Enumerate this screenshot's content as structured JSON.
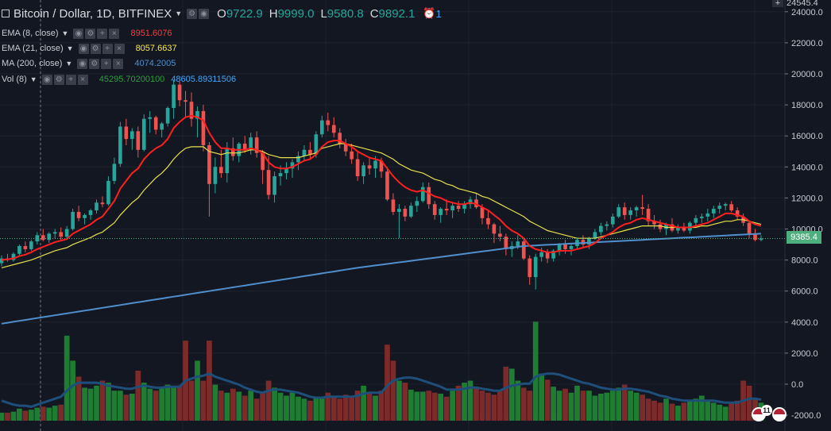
{
  "header": {
    "symbol_title": "Bitcoin / Dollar, 1D, BITFINEX",
    "open_label": "O",
    "open_value": "9722.9",
    "high_label": "H",
    "high_value": "9999.0",
    "low_label": "L",
    "low_value": "9580.8",
    "close_label": "C",
    "close_value": "9892.1",
    "alerts_count": "1"
  },
  "indicators": [
    {
      "name": "EMA (8, close)",
      "value": "8951.6076",
      "color": "#ff3b3b"
    },
    {
      "name": "EMA (21, close)",
      "value": "8057.6637",
      "color": "#ffeb3b"
    },
    {
      "name": "MA (200, close)",
      "value": "4074.2005",
      "color": "#4f8fcc"
    },
    {
      "name": "Vol (8)",
      "value": "45295.70200100",
      "value2": "48605.89311506",
      "color": "#2e9e3e",
      "color2": "#42a5f5"
    }
  ],
  "price_axis": {
    "top_tag": "24545.4",
    "labels": [
      "24000.0",
      "22000.0",
      "20000.0",
      "18000.0",
      "16000.0",
      "14000.0",
      "12000.0",
      "10000.0",
      "8000.0",
      "6000.0",
      "4000.0",
      "2000.0",
      "0.0",
      "-2000.0"
    ],
    "last_price": "9385.4"
  },
  "colors": {
    "up": "#26a69a",
    "down": "#ef5350",
    "ema8": "#ff1f1f",
    "ema21": "#e8e14a",
    "ma200": "#4f8fcc",
    "vol_up": "#1e7d32",
    "vol_down": "#7d2a2a",
    "vol_ma": "#1e4f7a",
    "last_price": "#4caf7d"
  },
  "events": {
    "count": "11"
  },
  "chart_data": {
    "type": "candlestick",
    "ylim": [
      -3000,
      24545.4
    ],
    "candles": [
      [
        7800,
        8300,
        7600,
        8100
      ],
      [
        8100,
        8400,
        7900,
        8000
      ],
      [
        8000,
        8500,
        7900,
        8400
      ],
      [
        8400,
        9000,
        8300,
        8900
      ],
      [
        8900,
        9200,
        8500,
        8700
      ],
      [
        8700,
        9300,
        8600,
        9200
      ],
      [
        9200,
        9800,
        9000,
        9600
      ],
      [
        9600,
        10000,
        9200,
        9300
      ],
      [
        9300,
        9800,
        9100,
        9700
      ],
      [
        9700,
        10000,
        9400,
        9800
      ],
      [
        9800,
        10100,
        9300,
        9500
      ],
      [
        9500,
        10200,
        9400,
        10000
      ],
      [
        10000,
        11300,
        9900,
        11100
      ],
      [
        11100,
        11500,
        10500,
        10700
      ],
      [
        10700,
        11000,
        10300,
        10900
      ],
      [
        10900,
        11300,
        10600,
        11200
      ],
      [
        11200,
        11900,
        11000,
        11700
      ],
      [
        11700,
        12100,
        11400,
        11600
      ],
      [
        11600,
        13400,
        11500,
        13100
      ],
      [
        13100,
        14600,
        12900,
        14200
      ],
      [
        14200,
        16900,
        14000,
        16600
      ],
      [
        16600,
        17100,
        15400,
        15800
      ],
      [
        15800,
        16500,
        15100,
        16300
      ],
      [
        16300,
        16600,
        14600,
        15100
      ],
      [
        15100,
        17400,
        15000,
        17100
      ],
      [
        17100,
        17600,
        16200,
        17200
      ],
      [
        17200,
        17300,
        16100,
        16400
      ],
      [
        16400,
        16900,
        15900,
        16800
      ],
      [
        16800,
        17900,
        16600,
        17800
      ],
      [
        17800,
        19600,
        17100,
        19300
      ],
      [
        19300,
        19500,
        17900,
        18300
      ],
      [
        18300,
        18900,
        17200,
        18200
      ],
      [
        18200,
        18800,
        16600,
        17100
      ],
      [
        17100,
        17900,
        15900,
        17600
      ],
      [
        17600,
        18000,
        15000,
        15400
      ],
      [
        15400,
        15600,
        10800,
        12900
      ],
      [
        12900,
        14600,
        12300,
        14000
      ],
      [
        14000,
        15100,
        13300,
        13600
      ],
      [
        13600,
        15600,
        13000,
        15200
      ],
      [
        15200,
        15900,
        14400,
        14700
      ],
      [
        14700,
        15600,
        14300,
        15500
      ],
      [
        15500,
        16000,
        14900,
        15100
      ],
      [
        15100,
        16200,
        14800,
        15900
      ],
      [
        15900,
        16300,
        14600,
        14900
      ],
      [
        14900,
        15100,
        12900,
        13800
      ],
      [
        13800,
        14700,
        11900,
        12200
      ],
      [
        12200,
        13700,
        11700,
        13400
      ],
      [
        13400,
        14100,
        12800,
        13600
      ],
      [
        13600,
        14300,
        13200,
        13900
      ],
      [
        13900,
        14500,
        13300,
        14300
      ],
      [
        14300,
        15000,
        13800,
        14700
      ],
      [
        14700,
        15400,
        14400,
        15100
      ],
      [
        15100,
        15600,
        14500,
        14800
      ],
      [
        14800,
        16300,
        14600,
        16100
      ],
      [
        16100,
        17300,
        15900,
        17000
      ],
      [
        17000,
        17500,
        16300,
        16700
      ],
      [
        16700,
        17200,
        15900,
        16200
      ],
      [
        16200,
        16500,
        15200,
        15500
      ],
      [
        15500,
        15800,
        14700,
        15000
      ],
      [
        15000,
        15500,
        14200,
        14500
      ],
      [
        14500,
        15000,
        13100,
        13400
      ],
      [
        13400,
        14300,
        12900,
        14100
      ],
      [
        14100,
        14600,
        13500,
        13900
      ],
      [
        13900,
        14700,
        13300,
        14400
      ],
      [
        14400,
        14600,
        13300,
        13700
      ],
      [
        13700,
        14000,
        11800,
        11900
      ],
      [
        11900,
        12300,
        10900,
        11100
      ],
      [
        11100,
        11600,
        9400,
        11300
      ],
      [
        11300,
        11500,
        10500,
        10800
      ],
      [
        10800,
        11700,
        10700,
        11500
      ],
      [
        11500,
        12100,
        11100,
        11800
      ],
      [
        11800,
        13000,
        11700,
        12700
      ],
      [
        12700,
        13000,
        11300,
        11600
      ],
      [
        11600,
        11800,
        10600,
        10900
      ],
      [
        10900,
        11400,
        10400,
        11300
      ],
      [
        11300,
        11900,
        10900,
        11200
      ],
      [
        11200,
        11700,
        10700,
        11500
      ],
      [
        11500,
        11800,
        11100,
        11300
      ],
      [
        11300,
        11800,
        11000,
        11600
      ],
      [
        11600,
        12100,
        11300,
        11900
      ],
      [
        11900,
        12300,
        11300,
        11400
      ],
      [
        11400,
        11600,
        10300,
        10700
      ],
      [
        10700,
        11200,
        10000,
        10300
      ],
      [
        10300,
        10400,
        9100,
        9700
      ],
      [
        9700,
        10200,
        9200,
        9500
      ],
      [
        9500,
        9700,
        8300,
        8700
      ],
      [
        8700,
        9200,
        8200,
        8900
      ],
      [
        8900,
        9600,
        8700,
        9200
      ],
      [
        9200,
        9400,
        8000,
        8100
      ],
      [
        8100,
        8300,
        6400,
        6900
      ],
      [
        6900,
        8400,
        6100,
        8200
      ],
      [
        8200,
        8800,
        7900,
        8500
      ],
      [
        8500,
        8700,
        7800,
        8100
      ],
      [
        8100,
        8700,
        7900,
        8600
      ],
      [
        8600,
        9100,
        8300,
        9000
      ],
      [
        9000,
        9300,
        8400,
        8700
      ],
      [
        8700,
        9100,
        8300,
        8900
      ],
      [
        8900,
        9400,
        8700,
        9300
      ],
      [
        9300,
        9600,
        8800,
        9000
      ],
      [
        9000,
        9500,
        8700,
        9400
      ],
      [
        9400,
        10000,
        9300,
        9800
      ],
      [
        9800,
        10400,
        9600,
        10200
      ],
      [
        10200,
        10500,
        9900,
        10300
      ],
      [
        10300,
        11000,
        10100,
        10800
      ],
      [
        10800,
        11600,
        10700,
        11400
      ],
      [
        11400,
        11700,
        10600,
        10900
      ],
      [
        10900,
        11400,
        10600,
        11200
      ],
      [
        11200,
        11500,
        10800,
        11400
      ],
      [
        11400,
        12200,
        10900,
        11300
      ],
      [
        11300,
        11600,
        10200,
        10500
      ],
      [
        10500,
        10900,
        10000,
        10300
      ],
      [
        10300,
        10600,
        9800,
        10000
      ],
      [
        10000,
        10400,
        9600,
        10300
      ],
      [
        10300,
        10700,
        9800,
        9900
      ],
      [
        9900,
        10300,
        9700,
        10100
      ],
      [
        10100,
        10400,
        9800,
        9900
      ],
      [
        9900,
        10500,
        9700,
        10400
      ],
      [
        10400,
        10900,
        10200,
        10700
      ],
      [
        10700,
        11000,
        10400,
        10800
      ],
      [
        10800,
        11300,
        10500,
        11000
      ],
      [
        11000,
        11500,
        10700,
        11300
      ],
      [
        11300,
        11700,
        11000,
        11500
      ],
      [
        11500,
        11700,
        11200,
        11600
      ],
      [
        11600,
        11800,
        11100,
        11200
      ],
      [
        11200,
        11400,
        10600,
        10800
      ],
      [
        10800,
        11000,
        10200,
        10400
      ],
      [
        10400,
        10500,
        9400,
        9700
      ],
      [
        9700,
        10000,
        9200,
        9300
      ],
      [
        9300,
        9600,
        9200,
        9385.4
      ]
    ],
    "ema8": [
      8000,
      8050,
      8100,
      8250,
      8350,
      8500,
      8700,
      8850,
      9000,
      9150,
      9250,
      9350,
      9700,
      9900,
      10100,
      10300,
      10600,
      10800,
      11300,
      11800,
      12600,
      13100,
      13600,
      13900,
      14500,
      14900,
      15200,
      15400,
      15800,
      16500,
      16900,
      17200,
      17300,
      17200,
      17000,
      16200,
      15600,
      15200,
      15200,
      15100,
      15100,
      15100,
      15200,
      15100,
      14900,
      14300,
      14000,
      13900,
      13900,
      14000,
      14200,
      14400,
      14500,
      14800,
      15300,
      15600,
      15700,
      15700,
      15500,
      15300,
      15000,
      14800,
      14600,
      14500,
      14400,
      13900,
      13400,
      13000,
      12700,
      12500,
      12400,
      12500,
      12300,
      12100,
      12000,
      11800,
      11700,
      11600,
      11600,
      11700,
      11600,
      11400,
      11200,
      10900,
      10600,
      10200,
      9900,
      9700,
      9400,
      8900,
      8700,
      8600,
      8500,
      8500,
      8600,
      8600,
      8600,
      8700,
      8800,
      8900,
      9100,
      9400,
      9600,
      9800,
      10100,
      10300,
      10400,
      10600,
      10700,
      10600,
      10500,
      10400,
      10300,
      10200,
      10100,
      10100,
      10100,
      10200,
      10300,
      10400,
      10600,
      10800,
      11000,
      11000,
      10900,
      10800,
      10500,
      10300,
      10200
    ],
    "ema21": [
      7500,
      7600,
      7700,
      7800,
      7900,
      8000,
      8150,
      8300,
      8450,
      8600,
      8700,
      8800,
      9000,
      9150,
      9300,
      9450,
      9650,
      9800,
      10100,
      10400,
      10900,
      11300,
      11700,
      12000,
      12500,
      12900,
      13300,
      13600,
      14000,
      14500,
      14900,
      15200,
      15300,
      15300,
      15300,
      15000,
      14900,
      14800,
      14900,
      14900,
      14900,
      15000,
      15100,
      15100,
      15000,
      14800,
      14700,
      14600,
      14600,
      14600,
      14600,
      14700,
      14800,
      14900,
      15200,
      15300,
      15400,
      15500,
      15500,
      15400,
      15300,
      15200,
      15100,
      15000,
      14900,
      14700,
      14500,
      14200,
      14000,
      13800,
      13700,
      13600,
      13400,
      13200,
      13100,
      12900,
      12800,
      12600,
      12500,
      12400,
      12300,
      12100,
      12000,
      11800,
      11600,
      11400,
      11200,
      11000,
      10800,
      10500,
      10300,
      10100,
      9900,
      9800,
      9700,
      9600,
      9500,
      9400,
      9400,
      9400,
      9400,
      9500,
      9600,
      9700,
      9800,
      9900,
      10000,
      10100,
      10200,
      10200,
      10200,
      10200,
      10100,
      10100,
      10100,
      10100,
      10100,
      10100,
      10200,
      10200,
      10300,
      10400,
      10500,
      10500,
      10600,
      10600,
      10500,
      10400,
      10300
    ],
    "ma200": [
      3900,
      3960,
      4020,
      4080,
      4140,
      4200,
      4260,
      4320,
      4380,
      4440,
      4500,
      4560,
      4620,
      4680,
      4740,
      4800,
      4860,
      4920,
      4980,
      5040,
      5100,
      5160,
      5220,
      5280,
      5340,
      5400,
      5460,
      5520,
      5580,
      5640,
      5700,
      5760,
      5820,
      5880,
      5940,
      6000,
      6060,
      6120,
      6180,
      6240,
      6300,
      6360,
      6420,
      6480,
      6540,
      6600,
      6660,
      6720,
      6780,
      6840,
      6900,
      6960,
      7020,
      7080,
      7140,
      7200,
      7260,
      7320,
      7380,
      7440,
      7500,
      7550,
      7600,
      7650,
      7700,
      7750,
      7800,
      7850,
      7900,
      7950,
      8000,
      8050,
      8100,
      8150,
      8200,
      8250,
      8300,
      8350,
      8400,
      8450,
      8500,
      8550,
      8600,
      8650,
      8700,
      8750,
      8800,
      8850,
      8900,
      8920,
      8940,
      8960,
      8980,
      9000,
      9020,
      9040,
      9060,
      9080,
      9100,
      9120,
      9140,
      9160,
      9180,
      9200,
      9220,
      9240,
      9260,
      9280,
      9300,
      9320,
      9340,
      9360,
      9380,
      9400,
      9420,
      9440,
      9460,
      9480,
      9500,
      9520,
      9540,
      9560,
      9580,
      9600,
      9620,
      9640,
      9660,
      9680,
      9700
    ],
    "volume_rel": [
      8,
      8,
      9,
      12,
      10,
      11,
      13,
      14,
      13,
      15,
      16,
      85,
      60,
      44,
      33,
      32,
      35,
      40,
      38,
      30,
      30,
      26,
      27,
      50,
      38,
      32,
      30,
      34,
      36,
      34,
      35,
      80,
      40,
      60,
      40,
      80,
      36,
      30,
      28,
      32,
      29,
      25,
      30,
      22,
      28,
      40,
      33,
      28,
      25,
      28,
      24,
      22,
      20,
      23,
      24,
      28,
      24,
      22,
      26,
      24,
      30,
      35,
      29,
      25,
      30,
      76,
      60,
      40,
      38,
      31,
      29,
      29,
      30,
      28,
      27,
      24,
      30,
      35,
      38,
      40,
      34,
      30,
      28,
      26,
      30,
      54,
      52,
      40,
      33,
      30,
      99,
      47,
      41,
      34,
      30,
      32,
      28,
      35,
      30,
      30,
      25,
      27,
      28,
      30,
      33,
      36,
      30,
      28,
      26,
      22,
      20,
      18,
      22,
      17,
      15,
      18,
      20,
      22,
      25,
      20,
      18,
      16,
      14,
      18,
      20,
      40,
      35,
      22,
      18
    ],
    "volume_ma_rel": [
      20,
      18,
      16,
      15,
      15,
      14,
      16,
      18,
      20,
      22,
      24,
      30,
      35,
      38,
      38,
      38,
      38,
      37,
      35,
      34,
      33,
      32,
      32,
      34,
      35,
      34,
      33,
      33,
      34,
      34,
      34,
      40,
      42,
      44,
      45,
      47,
      44,
      42,
      40,
      38,
      36,
      33,
      31,
      29,
      28,
      30,
      31,
      31,
      30,
      29,
      28,
      26,
      24,
      23,
      23,
      24,
      24,
      24,
      24,
      24,
      25,
      27,
      28,
      28,
      28,
      35,
      40,
      42,
      43,
      43,
      42,
      40,
      38,
      36,
      34,
      31,
      31,
      31,
      32,
      33,
      33,
      32,
      31,
      30,
      30,
      33,
      35,
      36,
      37,
      37,
      44,
      46,
      47,
      47,
      46,
      44,
      42,
      40,
      38,
      37,
      35,
      33,
      32,
      31,
      31,
      32,
      32,
      31,
      30,
      29,
      27,
      25,
      24,
      22,
      21,
      20,
      20,
      20,
      20,
      20,
      20,
      19,
      18,
      18,
      18,
      20,
      22,
      22,
      21
    ]
  }
}
